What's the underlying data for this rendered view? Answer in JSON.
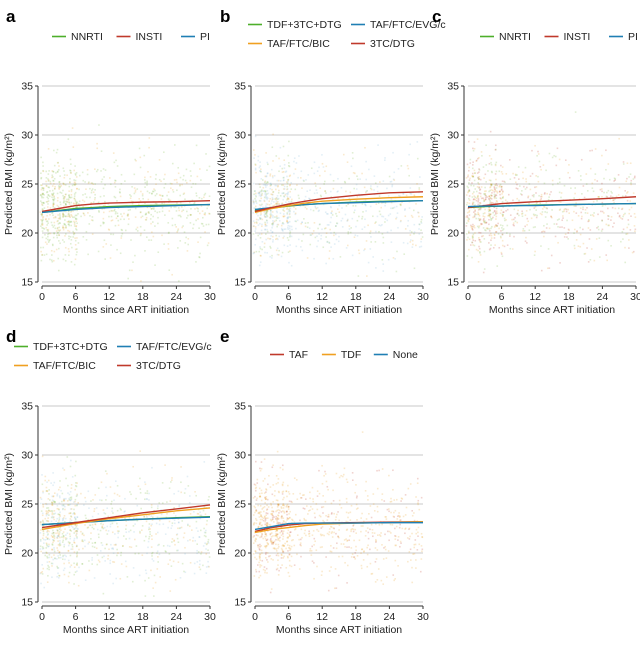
{
  "chart_data": [
    {
      "panel": "a",
      "type": "line",
      "xlabel": "Months since ART initiation",
      "ylabel": "Predicted BMI (kg/m²)",
      "xlim": [
        0,
        30
      ],
      "ylim": [
        15,
        35
      ],
      "xticks": [
        0,
        6,
        12,
        18,
        24,
        30
      ],
      "yticks": [
        15,
        20,
        25,
        30,
        35
      ],
      "grid": "horizontal",
      "legend_position": "top",
      "scatter_colors": [
        "#78b43c",
        "#78b43c",
        "#e8a020"
      ],
      "series": [
        {
          "name": "NNRTI",
          "color": "#4daf2a",
          "x": [
            0,
            3,
            6,
            9,
            12,
            18,
            24,
            30
          ],
          "y": [
            22.1,
            22.3,
            22.5,
            22.6,
            22.7,
            22.8,
            22.85,
            22.9
          ]
        },
        {
          "name": "INSTI",
          "color": "#c0392b",
          "x": [
            0,
            3,
            6,
            9,
            12,
            18,
            24,
            30
          ],
          "y": [
            22.2,
            22.5,
            22.8,
            22.95,
            23.05,
            23.15,
            23.2,
            23.3
          ]
        },
        {
          "name": "PI",
          "color": "#1f7fb4",
          "x": [
            0,
            3,
            6,
            9,
            12,
            18,
            24,
            30
          ],
          "y": [
            22.1,
            22.25,
            22.4,
            22.5,
            22.6,
            22.7,
            22.8,
            22.9
          ]
        }
      ]
    },
    {
      "panel": "b",
      "type": "line",
      "xlabel": "Months since ART initiation",
      "ylabel": "Predicted BMI (kg/m²)",
      "xlim": [
        0,
        30
      ],
      "ylim": [
        15,
        35
      ],
      "xticks": [
        0,
        6,
        12,
        18,
        24,
        30
      ],
      "yticks": [
        15,
        20,
        25,
        30,
        35
      ],
      "grid": "horizontal",
      "legend_position": "top",
      "scatter_colors": [
        "#7fb5d8",
        "#7fb5d8",
        "#e8a020",
        "#78b43c"
      ],
      "series": [
        {
          "name": "TDF+3TC+DTG",
          "color": "#4daf2a",
          "x": [
            0,
            3,
            6,
            9,
            12,
            18,
            24,
            30
          ],
          "y": [
            22.3,
            22.55,
            22.75,
            22.9,
            23.0,
            23.15,
            23.25,
            23.3
          ]
        },
        {
          "name": "TAF/FTC/EVG/c",
          "color": "#1f7fb4",
          "x": [
            0,
            3,
            6,
            9,
            12,
            18,
            24,
            30
          ],
          "y": [
            22.4,
            22.6,
            22.8,
            22.9,
            23.0,
            23.1,
            23.2,
            23.3
          ]
        },
        {
          "name": "TAF/FTC/BIC",
          "color": "#f0a020",
          "x": [
            0,
            3,
            6,
            9,
            12,
            18,
            24,
            30
          ],
          "y": [
            22.1,
            22.5,
            22.8,
            23.05,
            23.25,
            23.45,
            23.6,
            23.7
          ]
        },
        {
          "name": "3TC/DTG",
          "color": "#c0392b",
          "x": [
            0,
            3,
            6,
            9,
            12,
            18,
            24,
            30
          ],
          "y": [
            22.2,
            22.6,
            22.95,
            23.25,
            23.5,
            23.85,
            24.1,
            24.2
          ]
        }
      ]
    },
    {
      "panel": "c",
      "type": "line",
      "xlabel": "Months since ART initiation",
      "ylabel": "Predicted BMI (kg/m²)",
      "xlim": [
        0,
        30
      ],
      "ylim": [
        15,
        35
      ],
      "xticks": [
        0,
        6,
        12,
        18,
        24,
        30
      ],
      "yticks": [
        15,
        20,
        25,
        30,
        35
      ],
      "grid": "horizontal",
      "legend_position": "top",
      "scatter_colors": [
        "#78b43c",
        "#e8a020",
        "#c0392b"
      ],
      "series": [
        {
          "name": "NNRTI",
          "color": "#4daf2a",
          "x": [
            0,
            3,
            6,
            9,
            12,
            18,
            24,
            30
          ],
          "y": [
            22.6,
            22.7,
            22.75,
            22.8,
            22.85,
            22.9,
            22.95,
            23.0
          ]
        },
        {
          "name": "INSTI",
          "color": "#c0392b",
          "x": [
            0,
            3,
            6,
            9,
            12,
            18,
            24,
            30
          ],
          "y": [
            22.6,
            22.8,
            23.0,
            23.1,
            23.2,
            23.35,
            23.5,
            23.7
          ]
        },
        {
          "name": "PI",
          "color": "#1f7fb4",
          "x": [
            0,
            3,
            6,
            9,
            12,
            18,
            24,
            30
          ],
          "y": [
            22.7,
            22.75,
            22.75,
            22.8,
            22.8,
            22.9,
            22.95,
            23.0
          ]
        }
      ]
    },
    {
      "panel": "d",
      "type": "line",
      "xlabel": "Months since ART initiation",
      "ylabel": "Predicted BMI (kg/m²)",
      "xlim": [
        0,
        30
      ],
      "ylim": [
        15,
        35
      ],
      "xticks": [
        0,
        6,
        12,
        18,
        24,
        30
      ],
      "yticks": [
        15,
        20,
        25,
        30,
        35
      ],
      "grid": "horizontal",
      "legend_position": "top",
      "scatter_colors": [
        "#e8a020",
        "#7fb5d8",
        "#78b43c"
      ],
      "series": [
        {
          "name": "TDF+3TC+DTG",
          "color": "#4daf2a",
          "x": [
            0,
            6,
            12,
            18,
            24,
            30
          ],
          "y": [
            22.9,
            23.1,
            23.3,
            23.45,
            23.6,
            23.7
          ]
        },
        {
          "name": "TAF/FTC/EVG/c",
          "color": "#1f7fb4",
          "x": [
            0,
            6,
            12,
            18,
            24,
            30
          ],
          "y": [
            22.9,
            23.1,
            23.3,
            23.45,
            23.55,
            23.65
          ]
        },
        {
          "name": "TAF/FTC/BIC",
          "color": "#f0a020",
          "x": [
            0,
            6,
            12,
            18,
            24,
            30
          ],
          "y": [
            22.4,
            23.0,
            23.5,
            23.9,
            24.3,
            24.6
          ]
        },
        {
          "name": "3TC/DTG",
          "color": "#c0392b",
          "x": [
            0,
            6,
            12,
            18,
            24,
            30
          ],
          "y": [
            22.6,
            23.1,
            23.6,
            24.1,
            24.5,
            24.9
          ]
        }
      ]
    },
    {
      "panel": "e",
      "type": "line",
      "xlabel": "Months since ART initiation",
      "ylabel": "Predicted BMI (kg/m²)",
      "xlim": [
        0,
        30
      ],
      "ylim": [
        15,
        35
      ],
      "xticks": [
        0,
        6,
        12,
        18,
        24,
        30
      ],
      "yticks": [
        15,
        20,
        25,
        30,
        35
      ],
      "grid": "horizontal",
      "legend_position": "top",
      "scatter_colors": [
        "#e8a020",
        "#e8a020",
        "#e8a020",
        "#c0392b"
      ],
      "series": [
        {
          "name": "TAF",
          "color": "#c0392b",
          "x": [
            0,
            3,
            6,
            9,
            12,
            18,
            24,
            30
          ],
          "y": [
            22.2,
            22.6,
            22.85,
            23.0,
            23.05,
            23.1,
            23.15,
            23.2
          ]
        },
        {
          "name": "TDF",
          "color": "#f0a020",
          "x": [
            0,
            3,
            6,
            9,
            12,
            18,
            24,
            30
          ],
          "y": [
            22.1,
            22.4,
            22.6,
            22.8,
            22.95,
            23.05,
            23.1,
            23.2
          ]
        },
        {
          "name": "None",
          "color": "#1f7fb4",
          "x": [
            0,
            3,
            6,
            9,
            12,
            18,
            24,
            30
          ],
          "y": [
            22.4,
            22.7,
            23.0,
            23.05,
            23.05,
            23.05,
            23.1,
            23.1
          ]
        }
      ]
    }
  ]
}
